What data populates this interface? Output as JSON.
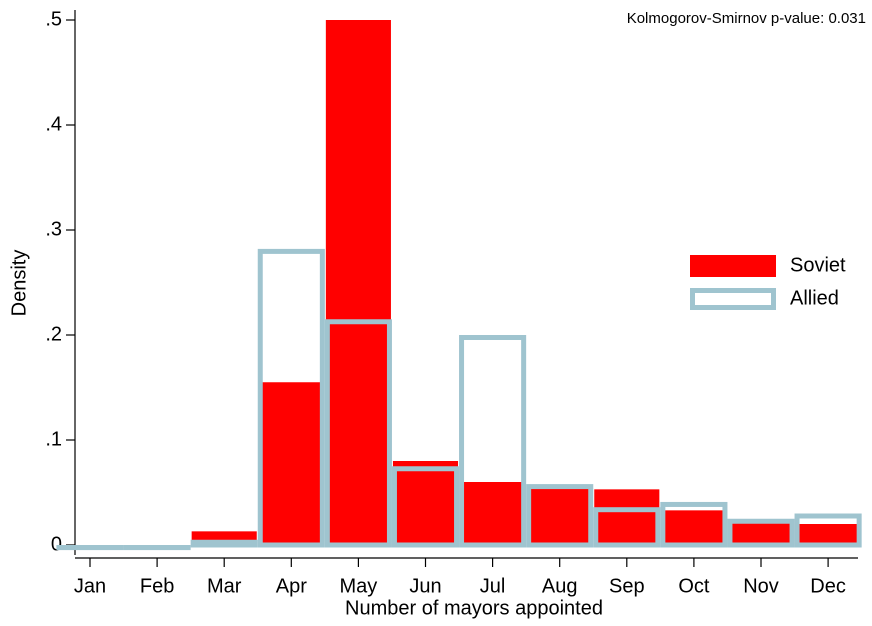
{
  "chart_data": {
    "type": "bar",
    "annotation": "Kolmogorov-Smirnov p-value: 0.031",
    "x_label": "Number of mayors appointed",
    "y_label": "Density",
    "categories": [
      "Jan",
      "Feb",
      "Mar",
      "Apr",
      "May",
      "Jun",
      "Jul",
      "Aug",
      "Sep",
      "Oct",
      "Nov",
      "Dec"
    ],
    "series": [
      {
        "name": "Soviet",
        "color": "#ff0000",
        "style": "filled",
        "values": [
          0,
          0,
          0.013,
          0.155,
          0.5,
          0.08,
          0.06,
          0.055,
          0.053,
          0.033,
          0.023,
          0.02
        ]
      },
      {
        "name": "Allied",
        "color": "#9fc4cf",
        "style": "outline",
        "values": [
          0,
          0,
          0.005,
          0.282,
          0.215,
          0.075,
          0.2,
          0.058,
          0.036,
          0.041,
          0.025,
          0.03
        ]
      }
    ],
    "ylim": [
      0,
      0.5
    ],
    "yticks": [
      0,
      {
        "value": 0.1,
        "label": ".1"
      },
      {
        "value": 0.2,
        "label": ".2"
      },
      {
        "value": 0.3,
        "label": ".3"
      },
      {
        "value": 0.4,
        "label": ".4"
      },
      {
        "value": 0.5,
        "label": ".5"
      }
    ],
    "legend_position": "right",
    "grid": false
  }
}
